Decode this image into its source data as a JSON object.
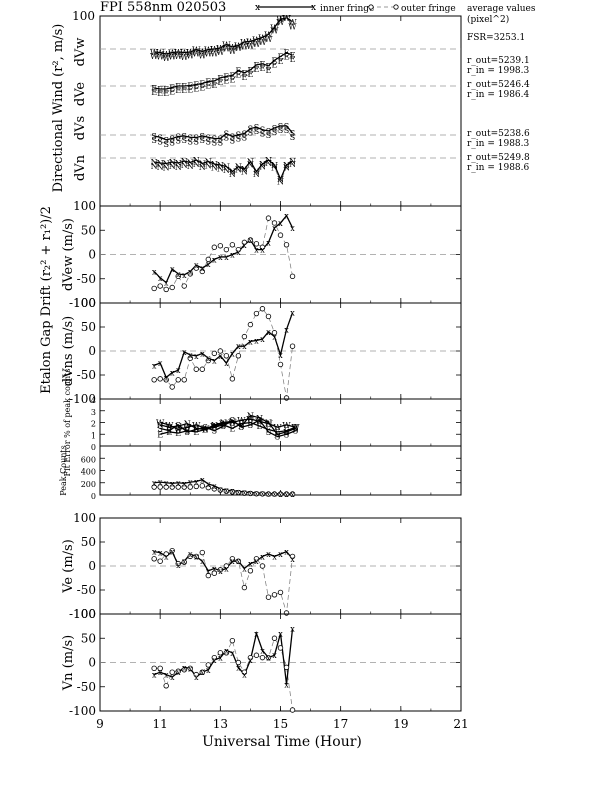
{
  "chart_data": {
    "type": "line",
    "title": "FPI 558nm 020503",
    "legend": {
      "inner_label": "inner fringe",
      "outer_label": "outer fringe",
      "inner_marker": "x",
      "outer_marker": "o",
      "placement": "top"
    },
    "top_right": {
      "average_title": "average values",
      "average_units": "(pixel^2)",
      "fsr": "FSR=3253.1",
      "lines": [
        "r_out=5239.1",
        "r_in = 1998.3",
        "r_out=5246.4",
        "r_in = 1986.4",
        "r_out=5238.6",
        "r_in = 1988.3",
        "r_out=5249.8",
        "r_in = 1988.6"
      ]
    },
    "xlabel": "Universal Time (Hour)",
    "xlim": [
      9,
      21
    ],
    "xticks": [
      "9",
      "11",
      "13",
      "15",
      "17",
      "19",
      "21"
    ],
    "grid": false,
    "panels": [
      {
        "id": "directional",
        "ylabel": "Directional Wind  (r², m/s)",
        "ylim": [
          -100,
          100
        ],
        "yticks": [
          "100",
          "50",
          "0",
          "-50",
          "-100"
        ],
        "show_ytick_labels": false,
        "zero_lines": [
          -50,
          -90,
          50,
          0
        ],
        "top_tick_label": "100",
        "direction_labels": [
          "dVw",
          "dVe",
          "dVs",
          "dVn"
        ],
        "series": [
          {
            "name": "W",
            "marker": "W",
            "x": [
              10.8,
              11.0,
              11.2,
              11.4,
              11.6,
              11.8,
              12.0,
              12.2,
              12.4,
              12.6,
              12.8,
              13.0,
              13.2,
              13.4,
              13.6,
              13.8,
              14.0,
              14.2,
              14.4,
              14.6,
              14.8,
              15.0,
              15.2,
              15.4
            ],
            "inner": [
              -70,
              -72,
              -78,
              -72,
              -70,
              -72,
              -70,
              -60,
              -68,
              -60,
              -58,
              -54,
              -40,
              -50,
              -44,
              -30,
              -28,
              -20,
              -12,
              0,
              28,
              60,
              100,
              50
            ],
            "outer": [
              -72,
              -74,
              -80,
              -74,
              -72,
              -76,
              -70,
              -62,
              -70,
              -62,
              -62,
              -56,
              -42,
              -52,
              -40,
              -34,
              -32,
              -24,
              -16,
              -4,
              30,
              62,
              96,
              46
            ]
          },
          {
            "name": "E",
            "marker": "E",
            "x": [
              10.8,
              11.0,
              11.2,
              11.4,
              11.6,
              11.8,
              12.0,
              12.2,
              12.4,
              12.6,
              12.8,
              13.0,
              13.2,
              13.4,
              13.6,
              13.8,
              14.0,
              14.2,
              14.4,
              14.6,
              14.8,
              15.0,
              15.2,
              15.4
            ],
            "inner": [
              -80,
              -84,
              -84,
              -78,
              -72,
              -72,
              -70,
              -66,
              -62,
              -54,
              -52,
              -40,
              -34,
              -30,
              -10,
              -20,
              -8,
              12,
              16,
              8,
              30,
              45,
              60,
              50
            ],
            "outer": [
              -82,
              -86,
              -86,
              -80,
              -74,
              -74,
              -72,
              -68,
              -64,
              -56,
              -54,
              -42,
              -36,
              -32,
              -12,
              -22,
              -10,
              10,
              14,
              6,
              28,
              42,
              58,
              48
            ]
          },
          {
            "name": "S",
            "marker": "S",
            "x": [
              10.8,
              11.0,
              11.2,
              11.4,
              11.6,
              11.8,
              12.0,
              12.2,
              12.4,
              12.6,
              12.8,
              13.0,
              13.2,
              13.4,
              13.6,
              13.8,
              14.0,
              14.2,
              14.4,
              14.6,
              14.8,
              15.0,
              15.2,
              15.4
            ],
            "inner": [
              -90,
              -95,
              -105,
              -100,
              -92,
              -90,
              -95,
              -96,
              -90,
              -95,
              -100,
              -100,
              -80,
              -92,
              -85,
              -80,
              -60,
              -55,
              -65,
              -70,
              -58,
              -50,
              -50,
              -78
            ],
            "outer": [
              -92,
              -97,
              -107,
              -102,
              -94,
              -92,
              -97,
              -98,
              -92,
              -97,
              -102,
              -102,
              -82,
              -94,
              -87,
              -82,
              -62,
              -57,
              -67,
              -72,
              -60,
              -52,
              -52,
              -80
            ]
          },
          {
            "name": "N",
            "marker": "N",
            "x": [
              10.8,
              11.0,
              11.2,
              11.4,
              11.6,
              11.8,
              12.0,
              12.2,
              12.4,
              12.6,
              12.8,
              13.0,
              13.2,
              13.4,
              13.6,
              13.8,
              14.0,
              14.2,
              14.4,
              14.6,
              14.8,
              15.0,
              15.2,
              15.4
            ],
            "inner": [
              -112,
              -116,
              -118,
              -112,
              -116,
              -108,
              -114,
              -104,
              -118,
              -110,
              -120,
              -124,
              -130,
              -150,
              -130,
              -140,
              -110,
              -150,
              -120,
              -104,
              -124,
              -180,
              -124,
              -108
            ],
            "outer": [
              -120,
              -124,
              -126,
              -120,
              -124,
              -116,
              -120,
              -112,
              -124,
              -118,
              -126,
              -130,
              -136,
              -152,
              -134,
              -142,
              -114,
              -152,
              -122,
              -108,
              -126,
              -182,
              -126,
              -112
            ]
          }
        ]
      },
      {
        "id": "dvew",
        "ylabel": "dVew (m/s)",
        "ylim": [
          -100,
          100
        ],
        "yticks": [
          "100",
          "50",
          "0",
          "-50",
          "-100"
        ],
        "x": [
          10.8,
          11.0,
          11.2,
          11.4,
          11.6,
          11.8,
          12.0,
          12.2,
          12.4,
          12.6,
          12.8,
          13.0,
          13.2,
          13.4,
          13.6,
          13.8,
          14.0,
          14.2,
          14.4,
          14.6,
          14.8,
          15.0,
          15.2,
          15.4
        ],
        "inner": [
          -35,
          -48,
          -58,
          -30,
          -40,
          -42,
          -35,
          -22,
          -28,
          -20,
          -10,
          -5,
          -5,
          0,
          5,
          20,
          30,
          10,
          10,
          25,
          55,
          65,
          80,
          55
        ],
        "outer": [
          -70,
          -65,
          -72,
          -68,
          -45,
          -65,
          -40,
          -28,
          -35,
          -10,
          15,
          18,
          10,
          20,
          10,
          25,
          30,
          22,
          15,
          75,
          65,
          40,
          20,
          -45
        ]
      },
      {
        "id": "dvns",
        "ylabel": "dVns (m/s)",
        "ylim": [
          -100,
          100
        ],
        "yticks": [
          "100",
          "50",
          "0",
          "-50",
          "-100"
        ],
        "x": [
          10.8,
          11.0,
          11.2,
          11.4,
          11.6,
          11.8,
          12.0,
          12.2,
          12.4,
          12.6,
          12.8,
          13.0,
          13.2,
          13.4,
          13.6,
          13.8,
          14.0,
          14.2,
          14.4,
          14.6,
          14.8,
          15.0,
          15.2,
          15.4
        ],
        "inner": [
          -30,
          -25,
          -55,
          -45,
          -40,
          -2,
          -8,
          -10,
          -5,
          -15,
          -20,
          -10,
          -25,
          -5,
          10,
          10,
          20,
          22,
          25,
          40,
          30,
          -8,
          45,
          80
        ],
        "outer": [
          -60,
          -58,
          -60,
          -75,
          -60,
          -60,
          -15,
          -38,
          -38,
          -20,
          -5,
          0,
          -10,
          -58,
          -10,
          30,
          55,
          78,
          88,
          72,
          38,
          -28,
          -105,
          10
        ]
      },
      {
        "id": "fiterr",
        "ylabel": "Fit Error % of peak counts",
        "ylim": [
          0,
          4
        ],
        "yticks": [
          "4",
          "3",
          "2",
          "1",
          "0"
        ],
        "series": [
          {
            "name": "W",
            "marker": "W",
            "x": [
              11.0,
              11.3,
              11.6,
              11.9,
              12.2,
              12.5,
              12.8,
              13.1,
              13.4,
              13.7,
              14.0,
              14.3,
              14.6,
              14.9,
              15.2,
              15.5
            ],
            "values": [
              2.0,
              1.8,
              1.4,
              1.6,
              1.8,
              1.5,
              1.7,
              1.9,
              2.0,
              2.2,
              2.3,
              2.1,
              1.9,
              1.6,
              1.8,
              1.6
            ]
          },
          {
            "name": "E",
            "marker": "E",
            "x": [
              11.0,
              11.3,
              11.6,
              11.9,
              12.2,
              12.5,
              12.8,
              13.1,
              13.4,
              13.7,
              14.0,
              14.3,
              14.6,
              14.9,
              15.2,
              15.5
            ],
            "values": [
              1.0,
              1.2,
              1.1,
              1.3,
              1.2,
              1.4,
              1.6,
              1.8,
              1.5,
              1.9,
              2.0,
              1.7,
              1.4,
              1.2,
              1.3,
              1.6
            ]
          },
          {
            "name": "S",
            "marker": "S",
            "x": [
              11.0,
              11.3,
              11.6,
              11.9,
              12.2,
              12.5,
              12.8,
              13.1,
              13.4,
              13.7,
              14.0,
              14.3,
              14.6,
              14.9,
              15.2,
              15.5
            ],
            "values": [
              1.5,
              1.3,
              1.8,
              1.2,
              1.4,
              1.6,
              1.3,
              1.7,
              2.2,
              1.6,
              1.8,
              2.2,
              1.2,
              0.8,
              1.0,
              1.3
            ]
          },
          {
            "name": "N",
            "marker": "N",
            "x": [
              11.0,
              11.3,
              11.6,
              11.9,
              12.2,
              12.5,
              12.8,
              13.1,
              13.4,
              13.7,
              14.0,
              14.3,
              14.6,
              14.9,
              15.2,
              15.5
            ],
            "values": [
              1.8,
              1.6,
              1.7,
              1.9,
              1.5,
              1.4,
              1.8,
              2.0,
              2.1,
              1.7,
              2.6,
              2.4,
              2.0,
              1.0,
              1.2,
              1.5
            ]
          }
        ]
      },
      {
        "id": "peak",
        "ylabel": "Peak Counts",
        "ylim": [
          0,
          800
        ],
        "yticks": [
          "600",
          "400",
          "200",
          "0"
        ],
        "x": [
          10.8,
          11.0,
          11.2,
          11.4,
          11.6,
          11.8,
          12.0,
          12.2,
          12.4,
          12.6,
          12.8,
          13.0,
          13.2,
          13.4,
          13.6,
          13.8,
          14.0,
          14.2,
          14.4,
          14.6,
          14.8,
          15.0,
          15.2,
          15.4
        ],
        "inner": [
          200,
          210,
          200,
          190,
          200,
          190,
          210,
          220,
          250,
          180,
          150,
          100,
          80,
          70,
          60,
          50,
          40,
          35,
          30,
          25,
          22,
          20,
          18,
          15
        ],
        "outer": [
          130,
          130,
          130,
          130,
          130,
          130,
          130,
          140,
          150,
          120,
          100,
          80,
          60,
          50,
          40,
          30,
          25,
          20,
          18,
          15,
          14,
          12,
          10,
          10
        ]
      },
      {
        "id": "ve",
        "ylabel": "Ve (m/s)",
        "ylim": [
          -100,
          100
        ],
        "yticks": [
          "100",
          "50",
          "0",
          "-50",
          "-100"
        ],
        "x": [
          10.8,
          11.0,
          11.2,
          11.4,
          11.6,
          11.8,
          12.0,
          12.2,
          12.4,
          12.6,
          12.8,
          13.0,
          13.2,
          13.4,
          13.6,
          13.8,
          14.0,
          14.2,
          14.4,
          14.6,
          14.8,
          15.0,
          15.2,
          15.4
        ],
        "inner": [
          30,
          28,
          20,
          30,
          2,
          10,
          25,
          20,
          10,
          -10,
          -5,
          -10,
          -5,
          10,
          10,
          -5,
          5,
          10,
          20,
          25,
          20,
          25,
          30,
          15
        ],
        "outer": [
          15,
          10,
          25,
          32,
          5,
          8,
          20,
          20,
          28,
          -20,
          -15,
          -8,
          0,
          15,
          10,
          -45,
          -10,
          15,
          0,
          -65,
          -60,
          -55,
          -105,
          20
        ]
      },
      {
        "id": "vn",
        "ylabel": "Vn (m/s)",
        "ylim": [
          -100,
          100
        ],
        "yticks": [
          "100",
          "50",
          "0",
          "-50",
          "-100"
        ],
        "x": [
          10.8,
          11.0,
          11.2,
          11.4,
          11.6,
          11.8,
          12.0,
          12.2,
          12.4,
          12.6,
          12.8,
          13.0,
          13.2,
          13.4,
          13.6,
          13.8,
          14.0,
          14.2,
          14.4,
          14.6,
          14.8,
          15.0,
          15.2,
          15.4
        ],
        "inner": [
          -25,
          -20,
          -25,
          -30,
          -20,
          -10,
          -12,
          -30,
          -20,
          -15,
          5,
          10,
          25,
          20,
          -10,
          -25,
          5,
          60,
          25,
          10,
          15,
          60,
          -45,
          70
        ],
        "outer": [
          -12,
          -12,
          -48,
          -20,
          -18,
          -15,
          -12,
          -25,
          -20,
          -5,
          10,
          20,
          20,
          45,
          0,
          -20,
          10,
          15,
          10,
          10,
          50,
          30,
          -10,
          -125
        ]
      }
    ]
  }
}
